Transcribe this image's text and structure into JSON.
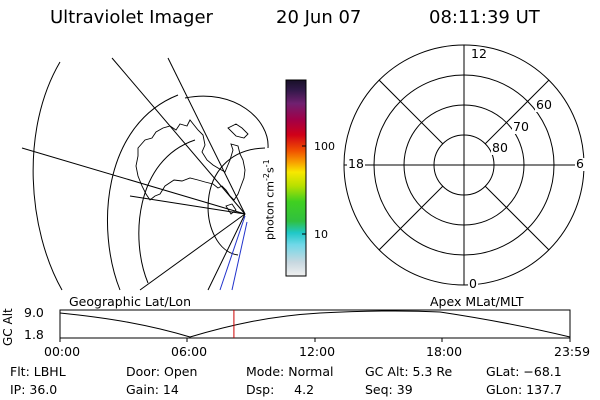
{
  "header": {
    "title": "Ultraviolet Imager",
    "date": "20 Jun 07",
    "time": "08:11:39 UT"
  },
  "left_panel": {
    "label": "Geographic Lat/Lon"
  },
  "right_panel": {
    "label": "Apex MLat/MLT",
    "mlt_labels": {
      "top": "12",
      "left": "18",
      "right": "6",
      "bottom": "0"
    },
    "mlat_labels": [
      "60",
      "70",
      "80"
    ]
  },
  "colorbar": {
    "label_main": "photon cm",
    "label_exp1": "-2",
    "label_mid": "s",
    "label_exp2": "-1",
    "ticks": [
      "100",
      "10"
    ]
  },
  "altitude_plot": {
    "ylabel": "GC Alt",
    "yticks": [
      "9.0",
      "1.8"
    ],
    "xticks": [
      "00:00",
      "06:00",
      "12:00",
      "18:00",
      "23:59"
    ],
    "current_time_fraction": 0.341
  },
  "footer": {
    "flt": "Flt: LBHL",
    "ip": "IP: 36.0",
    "door": "Door: Open",
    "gain": "Gain: 14",
    "mode": "Mode: Normal",
    "dsp": "Dsp:     4.2",
    "gcalt": "GC Alt: 5.3 Re",
    "seq": "Seq: 39",
    "glat": "GLat: −68.1",
    "glon": "GLon: 137.7"
  },
  "colors": {
    "line": "#000000",
    "orbit_marker": "#cc0000",
    "coast_extra": "#2233cc"
  }
}
